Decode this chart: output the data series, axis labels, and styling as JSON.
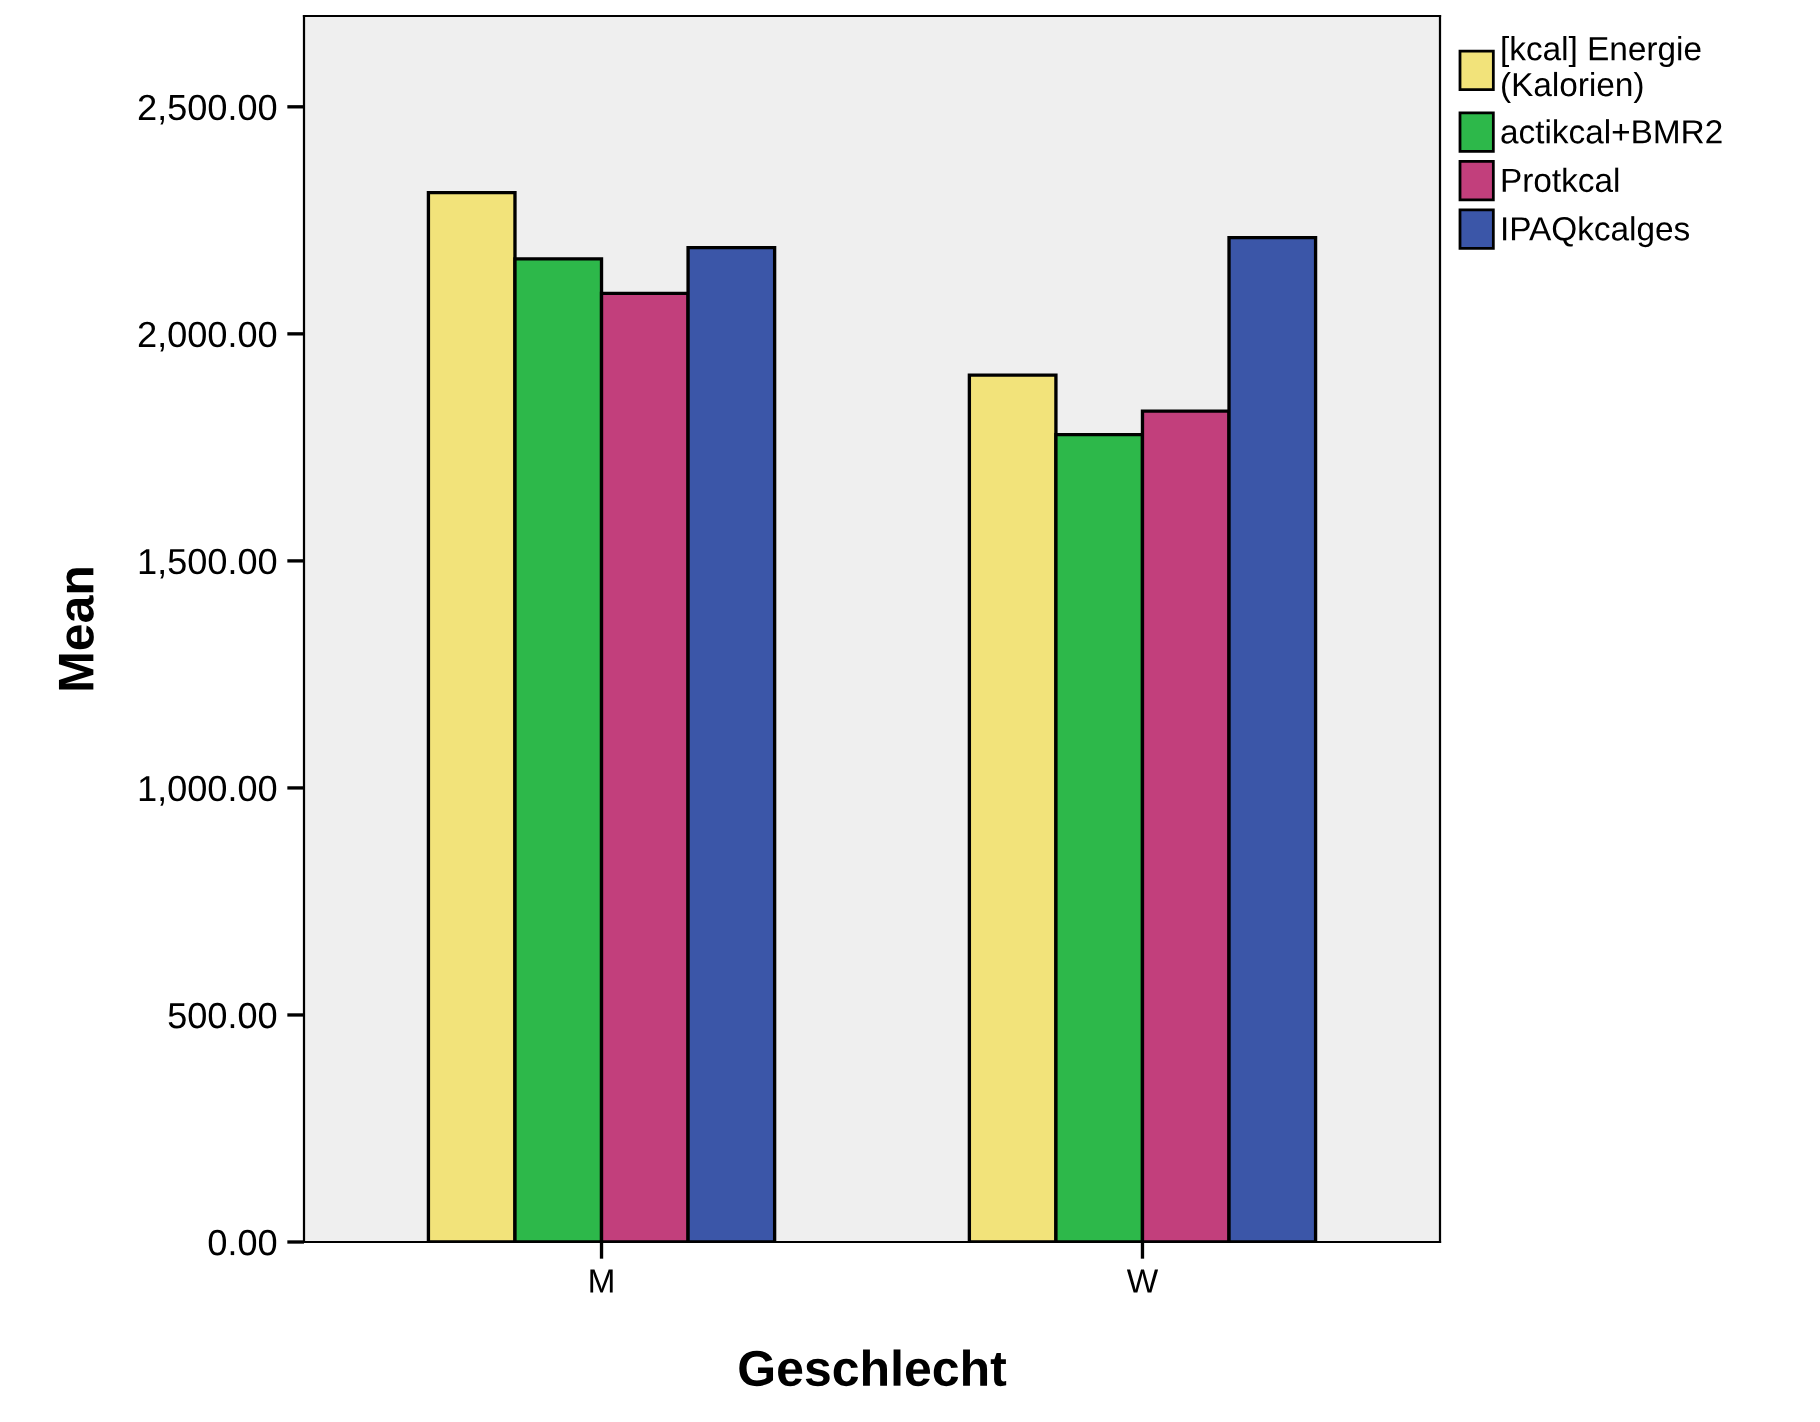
{
  "chart_data": {
    "type": "bar",
    "xlabel": "Geschlecht",
    "ylabel": "Mean",
    "categories": [
      "M",
      "W"
    ],
    "series": [
      {
        "name": "[kcal] Energie\n(Kalorien)",
        "color": "#f2e37a",
        "values": [
          2311,
          1909
        ]
      },
      {
        "name": "actikcal+BMR2",
        "color": "#2db84a",
        "values": [
          2165,
          1778
        ]
      },
      {
        "name": "Protkcal",
        "color": "#c23f7c",
        "values": [
          2089,
          1830
        ]
      },
      {
        "name": "IPAQkcalges",
        "color": "#3b56a8",
        "values": [
          2190,
          2212
        ]
      }
    ],
    "ylim": [
      0,
      2700
    ],
    "yticks": [
      {
        "value": 0,
        "label": "0.00"
      },
      {
        "value": 500,
        "label": "500.00"
      },
      {
        "value": 1000,
        "label": "1,000.00"
      },
      {
        "value": 1500,
        "label": "1,500.00"
      },
      {
        "value": 2000,
        "label": "2,000.00"
      },
      {
        "value": 2500,
        "label": "2,500.00"
      }
    ],
    "grid": false,
    "legend": "top right"
  }
}
